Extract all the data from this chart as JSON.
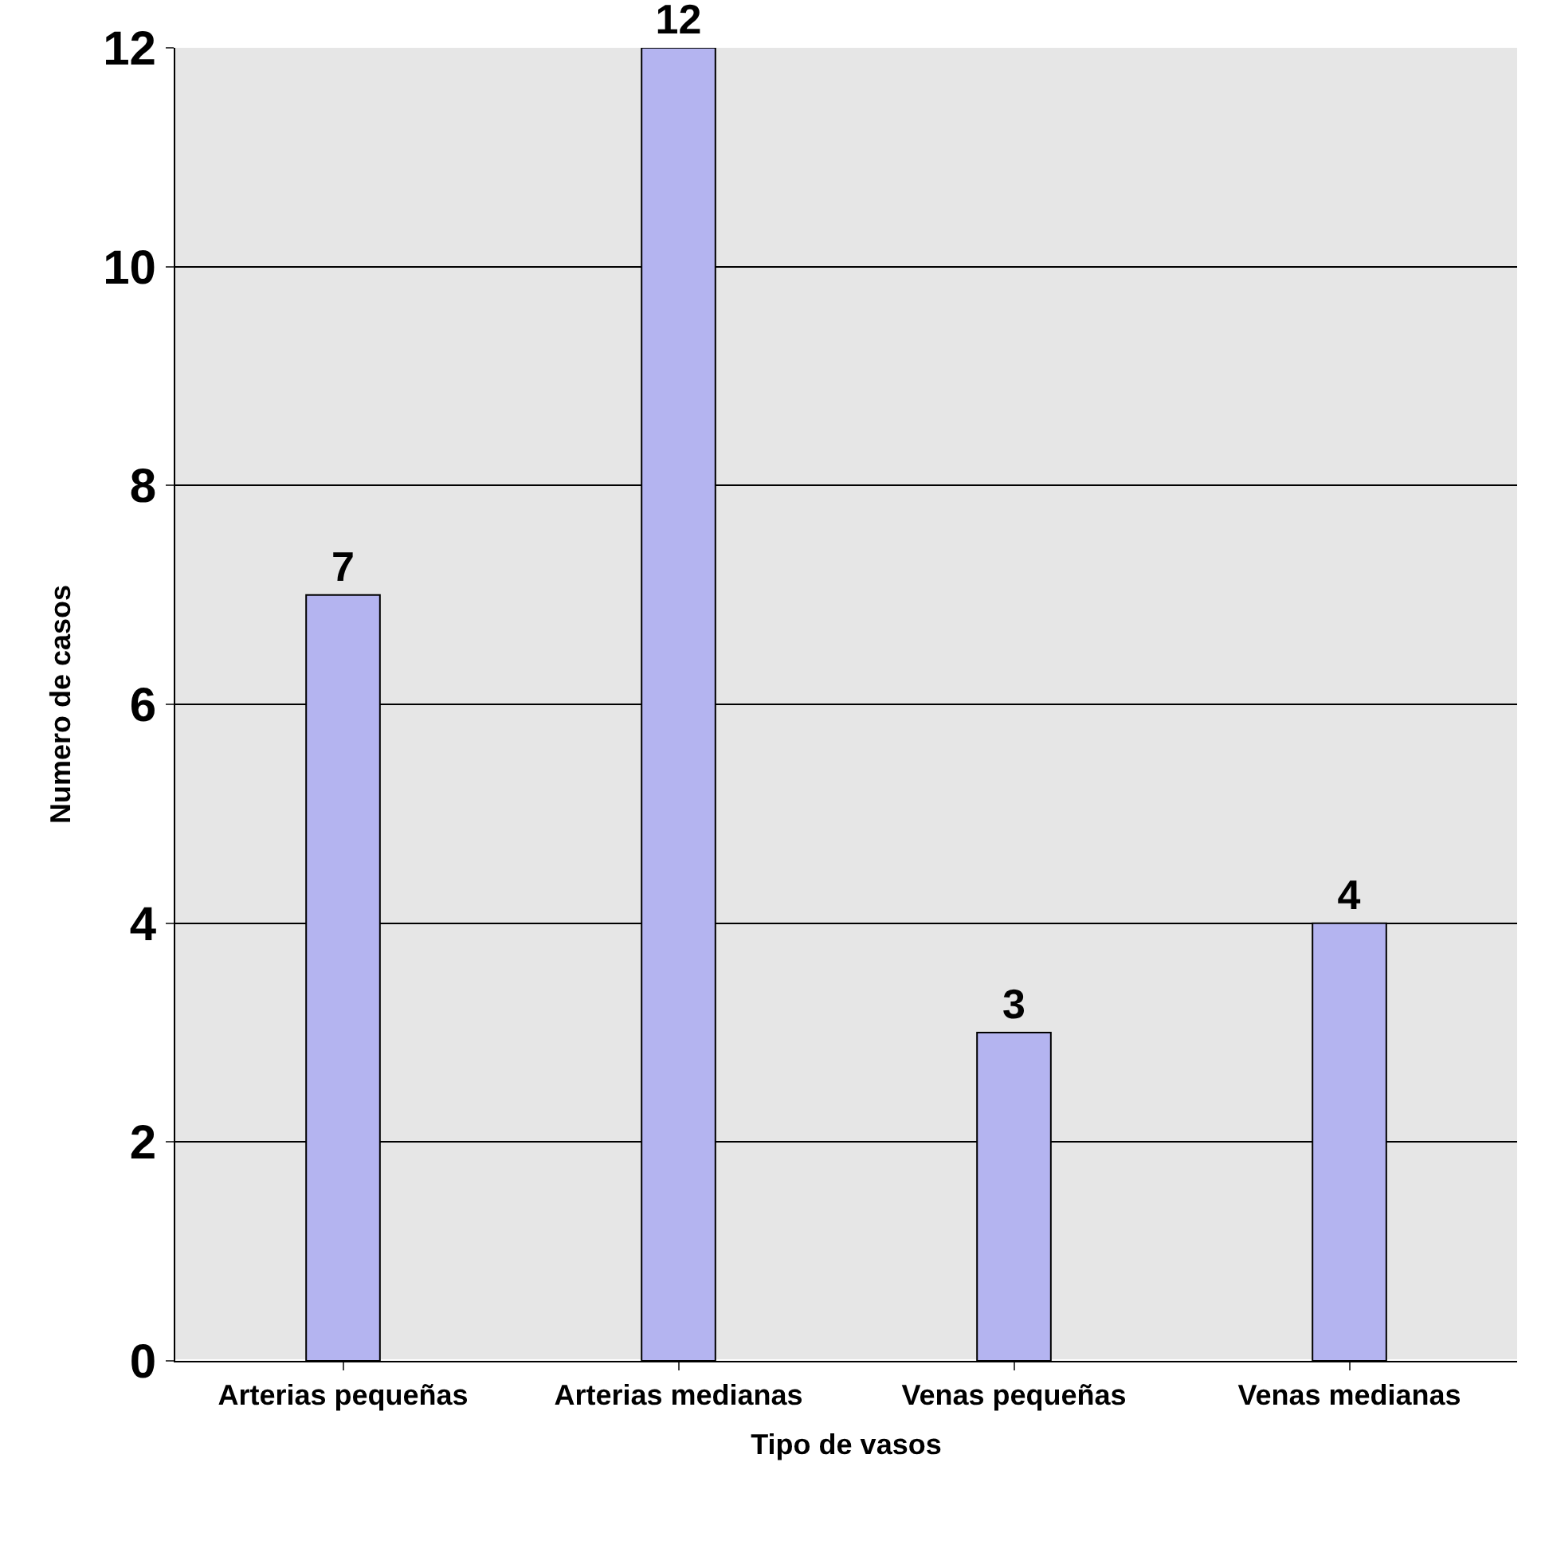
{
  "chart_data": {
    "type": "bar",
    "xlabel": "Tipo de vasos",
    "ylabel": "Numero de casos",
    "categories": [
      "Arterias pequeñas",
      "Arterias medianas",
      "Venas pequeñas",
      "Venas medianas"
    ],
    "values": [
      7,
      12,
      3,
      4
    ],
    "color": "#b4b4f0",
    "ylim": [
      0,
      12
    ],
    "yticks": [
      0,
      2,
      4,
      6,
      8,
      10,
      12
    ],
    "grid": "y",
    "data_labels": true
  }
}
